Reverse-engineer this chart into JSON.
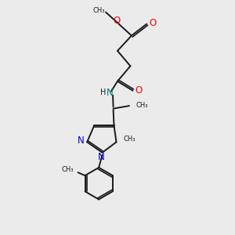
{
  "bg_color": "#ebebeb",
  "bond_color": "#1a1a1a",
  "oxygen_color": "#ff0000",
  "nitrogen_color": "#0000cd",
  "nh_color": "#008080",
  "figsize": [
    3.0,
    3.0
  ],
  "dpi": 100,
  "xlim": [
    0,
    10
  ],
  "ylim": [
    0,
    10
  ]
}
